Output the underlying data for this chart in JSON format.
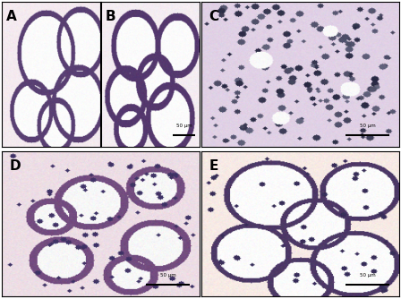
{
  "layout": {
    "fig_width": 4.48,
    "fig_height": 3.34,
    "dpi": 100
  },
  "panel_labels": [
    "A",
    "B",
    "C",
    "D",
    "E"
  ],
  "label_fontsize": 11,
  "label_color": "#000000",
  "label_weight": "bold",
  "border_color": "#000000",
  "border_linewidth": 0.8,
  "scale_bar_text": "50 μm",
  "scale_bar_color": "#000000",
  "background_color": "#ffffff",
  "scale_bar_panels": [
    "B",
    "C",
    "D",
    "E"
  ]
}
